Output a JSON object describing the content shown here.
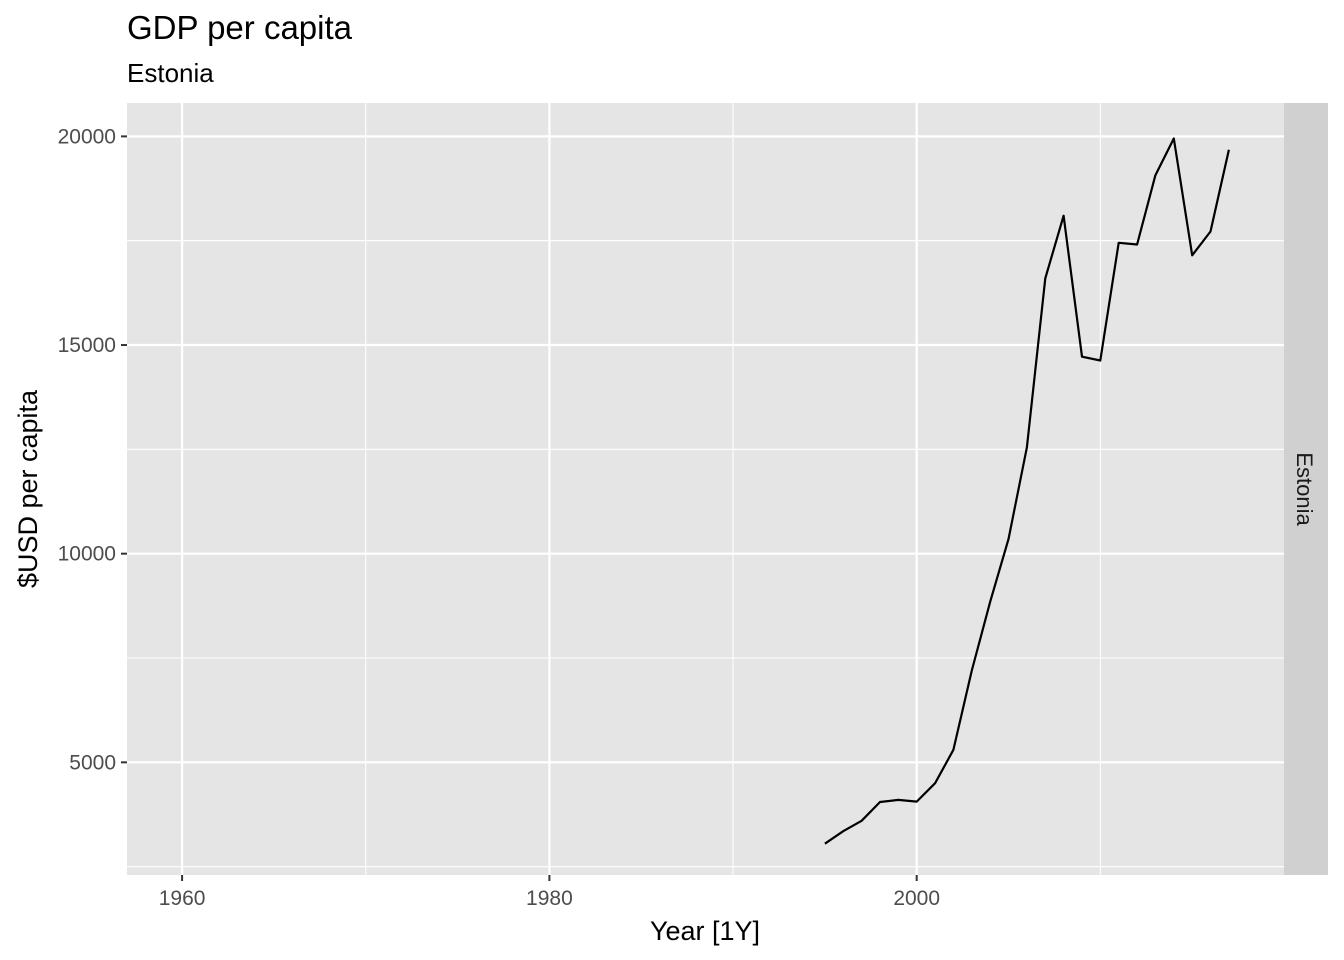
{
  "chart_data": {
    "type": "line",
    "title": "GDP per capita",
    "subtitle": "Estonia",
    "xlabel": "Year [1Y]",
    "ylabel": "$USD per capita",
    "facet_label": "Estonia",
    "xlim": [
      1957,
      2020
    ],
    "ylim": [
      2300,
      20800
    ],
    "x_ticks": [
      1960,
      1980,
      2000
    ],
    "x_tick_labels": [
      "1960",
      "1980",
      "2000"
    ],
    "x_minor_ticks": [
      1970,
      1990,
      2010
    ],
    "y_ticks": [
      5000,
      10000,
      15000,
      20000
    ],
    "y_tick_labels": [
      "5000",
      "10000",
      "15000",
      "20000"
    ],
    "y_minor_ticks": [
      2500,
      7500,
      12500,
      17500
    ],
    "grid": true,
    "colors": {
      "panel_bg": "#e5e5e5",
      "grid": "#ffffff",
      "strip_bg": "#d0d0d0",
      "line": "#000000"
    },
    "series": [
      {
        "x": [
          1995,
          1996,
          1997,
          1998,
          1999,
          2000,
          2001,
          2002,
          2003,
          2004,
          2005,
          2006,
          2007,
          2008,
          2009,
          2010,
          2011,
          2012,
          2013,
          2014,
          2015,
          2016,
          2017
        ],
        "values": [
          3050,
          3350,
          3600,
          4050,
          4100,
          4060,
          4500,
          5300,
          7200,
          8850,
          10350,
          12550,
          16600,
          18100,
          14720,
          14630,
          17450,
          17410,
          19070,
          19950,
          17150,
          17720,
          19680
        ]
      }
    ]
  }
}
